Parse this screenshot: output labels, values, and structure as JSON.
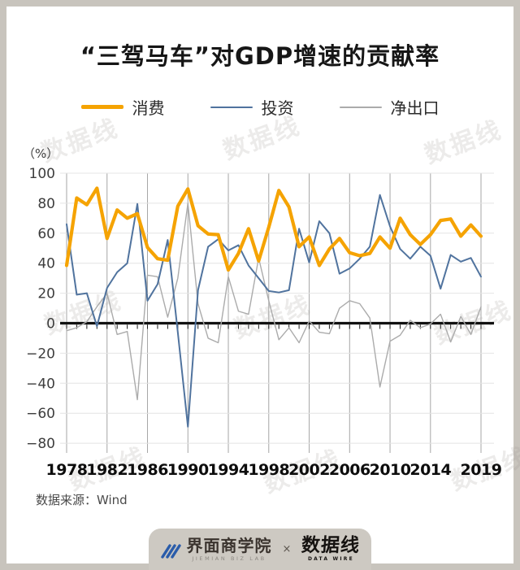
{
  "page": {
    "title": "“三驾马车”对GDP增速的贡献率",
    "unit": "（%）",
    "source": "数据来源：Wind",
    "watermark": "数据线"
  },
  "colors": {
    "consumption": "#F5A302",
    "investment": "#50739E",
    "net_exports": "#ABABAB",
    "frame": "#c8c4bd",
    "zero_axis": "#111111"
  },
  "chart_data": {
    "type": "line",
    "title": "“三驾马车”对GDP增速的贡献率",
    "ylabel": "（%）",
    "ylim": [
      -80,
      100
    ],
    "grid": true,
    "legend_position": "top",
    "y_ticks": [
      100,
      80,
      60,
      40,
      20,
      0,
      -20,
      -40,
      -60,
      -80
    ],
    "x_tick_years": [
      1978,
      1982,
      1986,
      1990,
      1994,
      1998,
      2002,
      2006,
      2010,
      2014,
      2019
    ],
    "x": [
      1978,
      1979,
      1980,
      1981,
      1982,
      1983,
      1984,
      1985,
      1986,
      1987,
      1988,
      1989,
      1990,
      1991,
      1992,
      1993,
      1994,
      1995,
      1996,
      1997,
      1998,
      1999,
      2000,
      2001,
      2002,
      2003,
      2004,
      2005,
      2006,
      2007,
      2008,
      2009,
      2010,
      2011,
      2012,
      2013,
      2014,
      2015,
      2016,
      2017,
      2018,
      2019
    ],
    "series": [
      {
        "name": "消费",
        "color": "#F5A302",
        "width": 4.2,
        "values": [
          38.5,
          83.5,
          79,
          90,
          56.5,
          75.5,
          70,
          73,
          50.5,
          43,
          42,
          78,
          89.5,
          65,
          59.5,
          59,
          35.5,
          46.5,
          63,
          41.5,
          64,
          88.5,
          77.5,
          51,
          57.5,
          38.5,
          49.5,
          56.5,
          47,
          45,
          46.5,
          57.5,
          50,
          70,
          59,
          52.5,
          59,
          68.5,
          69.5,
          58,
          65.5,
          58
        ]
      },
      {
        "name": "投资",
        "color": "#50739E",
        "width": 2,
        "values": [
          66,
          19,
          20,
          -2,
          23.5,
          34,
          40,
          79.5,
          15,
          26,
          55.5,
          -6,
          -69,
          22,
          51,
          56,
          48.5,
          52,
          38.5,
          30,
          21.5,
          20.5,
          22,
          63,
          40.5,
          68,
          60,
          33,
          36.5,
          43,
          51,
          85.5,
          64.5,
          49.5,
          43,
          51,
          45,
          23,
          45.5,
          41,
          43.5,
          31
        ]
      },
      {
        "name": "净出口",
        "color": "#ABABAB",
        "width": 1.4,
        "values": [
          -5,
          -3,
          1,
          11,
          20,
          -7.5,
          -5.5,
          -51,
          32,
          31,
          4,
          30,
          80,
          13,
          -10,
          -13,
          31,
          8,
          6,
          43.5,
          15,
          -11,
          -3,
          -13,
          1.5,
          -6,
          -7,
          10,
          15,
          13,
          3.5,
          -42.5,
          -12,
          -8,
          2,
          -3,
          -0.5,
          6,
          -12.5,
          4.5,
          -7.5,
          11
        ]
      }
    ]
  },
  "footer": {
    "jiemian_main": "界面商学院",
    "jiemian_sub": "JIEMIAN BIZ LAB",
    "separator": "×",
    "datawire_main": "数据线",
    "datawire_sub": "DATA WIRE"
  }
}
